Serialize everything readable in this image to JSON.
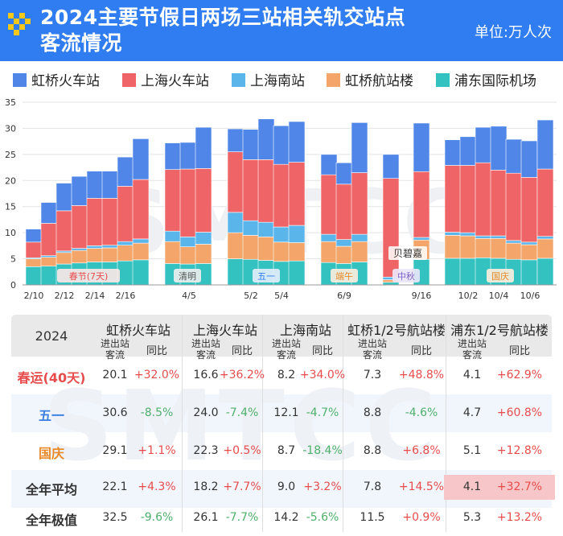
{
  "header": {
    "title_line1": "2024主要节假日两场三站相关轨交站点",
    "title_line2": "客流情况",
    "unit": "单位:万人次"
  },
  "colors": {
    "hongqiao_station": "#4f86e8",
    "shanghai_station": "#ef6466",
    "shanghai_south": "#5ab5eb",
    "hongqiao_airport": "#f3a56a",
    "pudong_airport": "#34c2c1",
    "header_bg": "#2f7df0",
    "red_text": "#e74c4c",
    "green_text": "#4fb06b"
  },
  "legend": [
    {
      "name": "虹桥火车站",
      "color": "#4f86e8"
    },
    {
      "name": "上海火车站",
      "color": "#ef6466"
    },
    {
      "name": "上海南站",
      "color": "#5ab5eb"
    },
    {
      "name": "虹桥航站楼",
      "color": "#f3a56a"
    },
    {
      "name": "浦东国际机场",
      "color": "#34c2c1"
    }
  ],
  "chart_data": {
    "type": "bar",
    "stacked": true,
    "ylim": [
      0,
      35
    ],
    "yticks": [
      0,
      5,
      10,
      15,
      20,
      25,
      30,
      35
    ],
    "grid": true,
    "stack_order": [
      "浦东国际机场",
      "虹桥航站楼",
      "上海南站",
      "上海火车站",
      "虹桥火车站"
    ],
    "groups": [
      {
        "label": "春节(7天)",
        "style": "red"
      },
      {
        "label": "清明",
        "style": "gray"
      },
      {
        "label": "五一",
        "style": "blue"
      },
      {
        "label": "端午",
        "style": "orange"
      },
      {
        "label": "中秋",
        "style": "purple"
      },
      {
        "label": "国庆",
        "style": "orange"
      }
    ],
    "xticks": [
      "2/10",
      "2/12",
      "2/14",
      "2/16",
      "4/5",
      "5/2",
      "5/4",
      "6/9",
      "9/16",
      "10/2",
      "10/4",
      "10/6"
    ],
    "annotation": "贝碧嘉",
    "bars": [
      {
        "g": 0,
        "pd": 3.5,
        "hq": 1.5,
        "sn": 0.2,
        "sh": 3.0,
        "hz": 2.5
      },
      {
        "g": 0,
        "pd": 3.6,
        "hq": 1.7,
        "sn": 0.3,
        "sh": 6.2,
        "hz": 4.0
      },
      {
        "g": 0,
        "pd": 4.0,
        "hq": 2.2,
        "sn": 0.3,
        "sh": 7.7,
        "hz": 5.3
      },
      {
        "g": 0,
        "pd": 4.2,
        "hq": 2.4,
        "sn": 0.4,
        "sh": 8.2,
        "hz": 5.6
      },
      {
        "g": 0,
        "pd": 4.4,
        "hq": 2.6,
        "sn": 0.5,
        "sh": 9.1,
        "hz": 5.2
      },
      {
        "g": 0,
        "pd": 4.4,
        "hq": 2.7,
        "sn": 0.5,
        "sh": 9.0,
        "hz": 5.2
      },
      {
        "g": 0,
        "pd": 4.6,
        "hq": 3.0,
        "sn": 0.7,
        "sh": 10.6,
        "hz": 5.6
      },
      {
        "g": 0,
        "pd": 4.8,
        "hq": 3.2,
        "sn": 0.8,
        "sh": 11.4,
        "hz": 7.8
      },
      {
        "g": 1,
        "pd": 4.1,
        "hq": 4.2,
        "sn": 2.0,
        "sh": 11.8,
        "hz": 5.1
      },
      {
        "g": 1,
        "pd": 4.0,
        "hq": 3.3,
        "sn": 1.9,
        "sh": 13.0,
        "hz": 5.1
      },
      {
        "g": 1,
        "pd": 4.1,
        "hq": 3.7,
        "sn": 2.3,
        "sh": 12.2,
        "hz": 7.9
      },
      {
        "g": 2,
        "pd": 5.0,
        "hq": 5.0,
        "sn": 3.9,
        "sh": 11.6,
        "hz": 4.4
      },
      {
        "g": 2,
        "pd": 4.9,
        "hq": 4.6,
        "sn": 2.8,
        "sh": 11.7,
        "hz": 5.8
      },
      {
        "g": 2,
        "pd": 4.7,
        "hq": 4.5,
        "sn": 2.8,
        "sh": 12.0,
        "hz": 7.8
      },
      {
        "g": 2,
        "pd": 4.5,
        "hq": 3.7,
        "sn": 2.9,
        "sh": 12.0,
        "hz": 7.4
      },
      {
        "g": 2,
        "pd": 4.6,
        "hq": 3.5,
        "sn": 3.3,
        "sh": 12.1,
        "hz": 7.8
      },
      {
        "g": 3,
        "pd": 4.3,
        "hq": 4.0,
        "sn": 1.4,
        "sh": 11.4,
        "hz": 3.9
      },
      {
        "g": 3,
        "pd": 4.1,
        "hq": 3.3,
        "sn": 1.3,
        "sh": 10.6,
        "hz": 4.1
      },
      {
        "g": 3,
        "pd": 4.4,
        "hq": 3.9,
        "sn": 1.4,
        "sh": 11.8,
        "hz": 9.6
      },
      {
        "g": 4,
        "pd": 0.5,
        "hq": 0.5,
        "sn": 0.5,
        "sh": 18.9,
        "hz": 4.6
      },
      {
        "g": 4,
        "pd": 4.9,
        "hq": 3.7,
        "sn": 0.5,
        "sh": 12.6,
        "hz": 9.3
      },
      {
        "g": 5,
        "pd": 5.1,
        "hq": 4.4,
        "sn": 0.6,
        "sh": 12.8,
        "hz": 4.9
      },
      {
        "g": 5,
        "pd": 5.1,
        "hq": 4.3,
        "sn": 0.6,
        "sh": 12.9,
        "hz": 5.5
      },
      {
        "g": 5,
        "pd": 5.2,
        "hq": 3.7,
        "sn": 0.5,
        "sh": 14.0,
        "hz": 6.8
      },
      {
        "g": 5,
        "pd": 5.1,
        "hq": 3.8,
        "sn": 0.5,
        "sh": 12.6,
        "hz": 8.4
      },
      {
        "g": 5,
        "pd": 4.9,
        "hq": 3.1,
        "sn": 0.5,
        "sh": 12.9,
        "hz": 6.5
      },
      {
        "g": 5,
        "pd": 4.8,
        "hq": 2.9,
        "sn": 0.5,
        "sh": 12.4,
        "hz": 7.0
      },
      {
        "g": 5,
        "pd": 5.1,
        "hq": 3.7,
        "sn": 0.5,
        "sh": 12.9,
        "hz": 9.4
      }
    ]
  },
  "table": {
    "year": "2024",
    "columns": [
      "虹桥火车站",
      "上海火车站",
      "上海南站",
      "虹桥1/2号航站楼",
      "浦东1/2号航站楼"
    ],
    "sub_flow": "进出站客流",
    "sub_flow_l1": "进出站",
    "sub_flow_l2": "客流",
    "sub_yoy": "同比",
    "rows": [
      {
        "label": "春运(40天)",
        "label_color": "#e74c4c",
        "cells": [
          {
            "v": "20.1",
            "y": "+32.0%",
            "up": true
          },
          {
            "v": "16.6",
            "y": "+36.2%",
            "up": true
          },
          {
            "v": "8.2",
            "y": "+34.0%",
            "up": true
          },
          {
            "v": "7.3",
            "y": "+48.8%",
            "up": true
          },
          {
            "v": "4.1",
            "y": "+62.9%",
            "up": true
          }
        ]
      },
      {
        "label": "五一",
        "label_color": "#3a7ee0",
        "cells": [
          {
            "v": "30.6",
            "y": "-8.5%",
            "up": false
          },
          {
            "v": "24.0",
            "y": "-7.4%",
            "up": false
          },
          {
            "v": "12.1",
            "y": "-4.7%",
            "up": false
          },
          {
            "v": "8.8",
            "y": "-4.6%",
            "up": false
          },
          {
            "v": "4.7",
            "y": "+60.8%",
            "up": true
          }
        ]
      },
      {
        "label": "国庆",
        "label_color": "#e88a2a",
        "cells": [
          {
            "v": "29.1",
            "y": "+1.1%",
            "up": true
          },
          {
            "v": "22.3",
            "y": "+0.5%",
            "up": true
          },
          {
            "v": "8.7",
            "y": "-18.4%",
            "up": false
          },
          {
            "v": "8.8",
            "y": "+6.8%",
            "up": true
          },
          {
            "v": "5.1",
            "y": "+12.8%",
            "up": true
          }
        ]
      },
      {
        "label": "全年平均",
        "label_color": "#333333",
        "cells": [
          {
            "v": "22.1",
            "y": "+4.3%",
            "up": true
          },
          {
            "v": "18.2",
            "y": "+7.7%",
            "up": true
          },
          {
            "v": "9.0",
            "y": "+3.2%",
            "up": true
          },
          {
            "v": "7.8",
            "y": "+14.5%",
            "up": true
          },
          {
            "v": "4.1",
            "y": "+32.7%",
            "up": true,
            "hl": true
          }
        ]
      },
      {
        "label": "全年极值",
        "label_color": "#333333",
        "cells": [
          {
            "v": "32.5",
            "y": "-9.6%",
            "up": false
          },
          {
            "v": "26.1",
            "y": "-7.7%",
            "up": false
          },
          {
            "v": "14.2",
            "y": "-5.6%",
            "up": false
          },
          {
            "v": "11.5",
            "y": "+0.9%",
            "up": true
          },
          {
            "v": "5.3",
            "y": "+13.2%",
            "up": true
          }
        ]
      }
    ]
  }
}
